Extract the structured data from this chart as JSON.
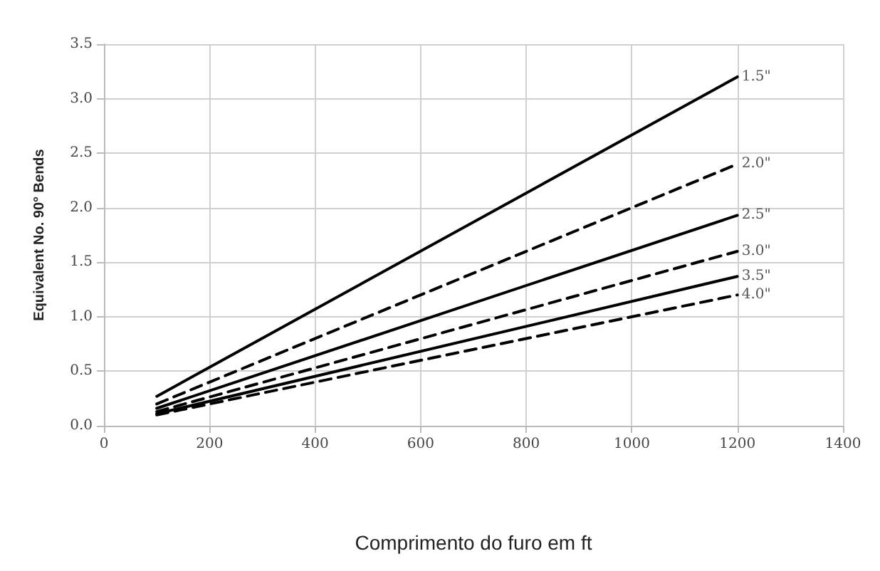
{
  "chart_data": {
    "type": "line",
    "xlabel": "Comprimento do furo em ft",
    "ylabel": "Equivalent No. 90° Bends",
    "x": [
      100,
      1200
    ],
    "series": [
      {
        "name": "1.5\"",
        "color": "#000000",
        "line_style": "solid",
        "values": [
          0.27,
          3.2
        ]
      },
      {
        "name": "2.0\"",
        "color": "#000000",
        "line_style": "dashed",
        "values": [
          0.2,
          2.4
        ]
      },
      {
        "name": "2.5\"",
        "color": "#000000",
        "line_style": "solid",
        "values": [
          0.16,
          1.93
        ]
      },
      {
        "name": "3.0\"",
        "color": "#000000",
        "line_style": "dashed",
        "values": [
          0.13,
          1.6
        ]
      },
      {
        "name": "3.5\"",
        "color": "#000000",
        "line_style": "solid",
        "values": [
          0.11,
          1.37
        ]
      },
      {
        "name": "4.0\"",
        "color": "#000000",
        "line_style": "dashed",
        "values": [
          0.1,
          1.2
        ]
      }
    ],
    "xlim": [
      0,
      1400
    ],
    "xticks": [
      0,
      200,
      400,
      600,
      800,
      1000,
      1200,
      1400
    ],
    "ylim": [
      0,
      3.5
    ],
    "yticks": [
      {
        "value": 0,
        "label": "0.0"
      },
      {
        "value": 0.5,
        "label": "0.5"
      },
      {
        "value": 1,
        "label": "1.0"
      },
      {
        "value": 1.5,
        "label": "1.5"
      },
      {
        "value": 2,
        "label": "2.0"
      },
      {
        "value": 2.5,
        "label": "2.5"
      },
      {
        "value": 3,
        "label": "3.0"
      },
      {
        "value": 3.5,
        "label": "3.5"
      }
    ],
    "grid": true,
    "marker": "none",
    "legend": false
  }
}
